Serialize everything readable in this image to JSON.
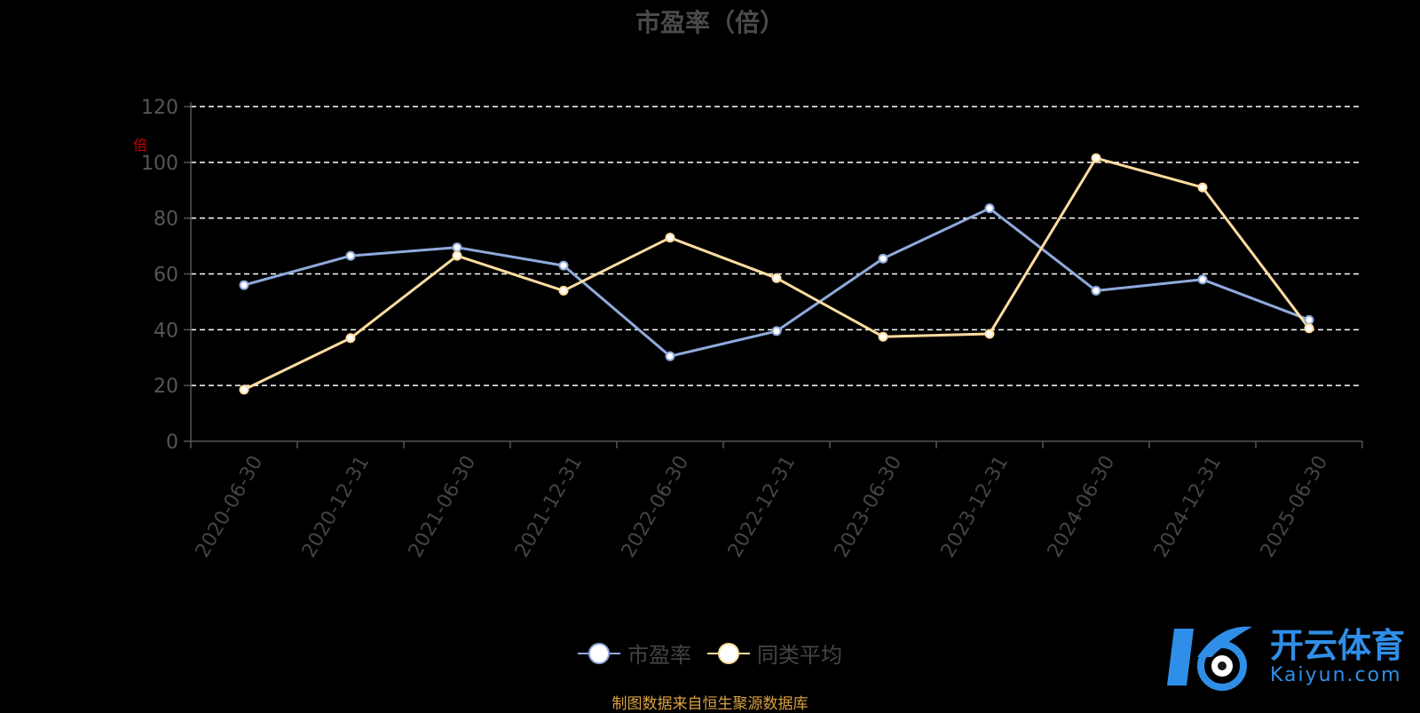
{
  "chart_data": {
    "type": "line",
    "title": "市盈率（倍）",
    "ylabel": "",
    "unit_label": "倍",
    "ylim": [
      0,
      120
    ],
    "yticks": [
      0,
      20,
      40,
      60,
      80,
      100,
      120
    ],
    "grid": true,
    "legend_position": "bottom-center",
    "categories": [
      "2020-06-30",
      "2020-12-31",
      "2021-06-30",
      "2021-12-31",
      "2022-06-30",
      "2022-12-31",
      "2023-06-30",
      "2023-12-31",
      "2024-06-30",
      "2024-12-31",
      "2025-06-30"
    ],
    "series": [
      {
        "name": "市盈率",
        "color": "#8faadc",
        "values": [
          56,
          66.5,
          69.5,
          63,
          30.5,
          39.5,
          65.5,
          83.5,
          54,
          58,
          43.5
        ]
      },
      {
        "name": "同类平均",
        "color": "#ffdca0",
        "values": [
          18.5,
          37,
          66.5,
          54,
          73,
          58.5,
          37.5,
          38.5,
          101.5,
          91,
          40.5
        ]
      }
    ]
  },
  "legend": [
    {
      "label": "市盈率",
      "color": "#8faadc"
    },
    {
      "label": "同类平均",
      "color": "#ffdca0"
    }
  ],
  "source": "制图数据来自恒生聚源数据库",
  "watermark": {
    "cn": "开云体育",
    "en": "Kaiyun.com"
  }
}
